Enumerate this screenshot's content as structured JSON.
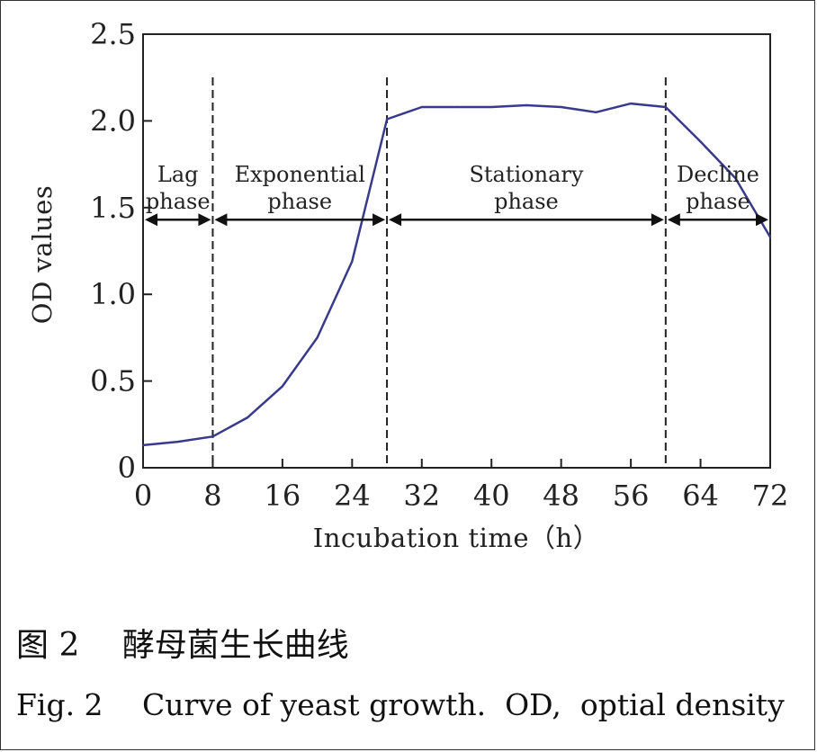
{
  "chart_data": {
    "type": "line",
    "xlabel": "Incubation time（h）",
    "ylabel": "OD  values",
    "xlim": [
      0,
      72
    ],
    "ylim": [
      0,
      2.5
    ],
    "xticks": [
      0,
      8,
      16,
      24,
      32,
      40,
      48,
      56,
      64,
      72
    ],
    "xtick_labels": [
      "0",
      "8",
      "16",
      "24",
      "32",
      "40",
      "48",
      "56",
      "64",
      "72"
    ],
    "yticks": [
      0,
      0.5,
      1.0,
      1.5,
      2.0,
      2.5
    ],
    "ytick_labels": [
      "0",
      "0.5",
      "1.0",
      "1.5",
      "2.0",
      "2.5"
    ],
    "grid": false,
    "series": [
      {
        "color": "#3a3a8c",
        "x": [
          0,
          4,
          8,
          12,
          16,
          20,
          24,
          28,
          32,
          36,
          40,
          44,
          48,
          52,
          56,
          60,
          64,
          68,
          72
        ],
        "y": [
          0.13,
          0.15,
          0.18,
          0.29,
          0.47,
          0.75,
          1.19,
          2.01,
          2.08,
          2.08,
          2.08,
          2.09,
          2.08,
          2.05,
          2.1,
          2.08,
          1.88,
          1.67,
          1.33
        ]
      }
    ],
    "phase_boundaries": [
      8,
      28,
      60
    ],
    "phase_arrow_y": 1.43,
    "phases": [
      {
        "lines": [
          "Lag",
          "phase"
        ],
        "from": 0,
        "to": 8
      },
      {
        "lines": [
          "Exponential",
          "phase"
        ],
        "from": 8,
        "to": 28
      },
      {
        "lines": [
          "Stationary",
          "phase"
        ],
        "from": 28,
        "to": 60
      },
      {
        "lines": [
          "Decline",
          "phase"
        ],
        "from": 60,
        "to": 72
      }
    ]
  },
  "caption": {
    "cn": "图 2　 酵母菌生长曲线",
    "en": "Fig. 2　 Curve of yeast growth.  OD,  optial density"
  }
}
